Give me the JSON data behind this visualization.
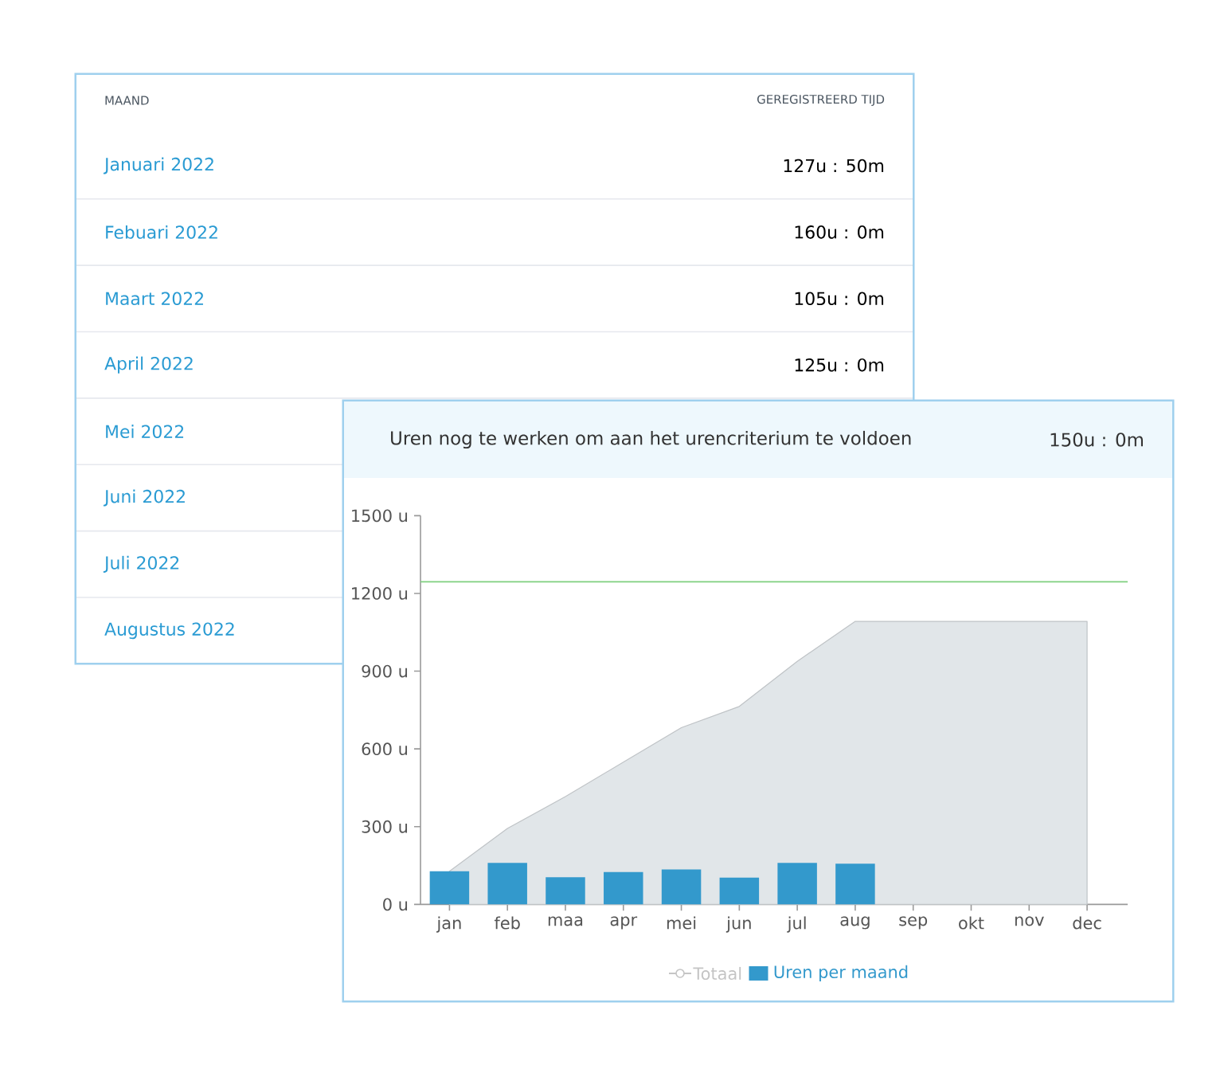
{
  "chart_data": [
    {
      "type": "other",
      "xlabel": "MAAND",
      "ylabel": "GEREGISTREERD TIJD",
      "categories": [
        "Januari 2022",
        "Febuari 2022",
        "Maart 2022",
        "April 2022",
        "Mei 2022",
        "Juni 2022",
        "Juli 2022",
        "Augustus 2022"
      ],
      "value_labels": [
        "127u : 50m",
        "160u : 0m",
        "105u : 0m",
        "125u : 0m",
        null,
        null,
        null,
        null
      ]
    },
    {
      "type": "bar",
      "title": "Uren nog te werken om aan het urencriterium te voldoen",
      "annotations": [
        "150u : 0m"
      ],
      "categories": [
        "jan",
        "feb",
        "maa",
        "apr",
        "mei",
        "jun",
        "jul",
        "aug",
        "sep",
        "okt",
        "nov",
        "dec"
      ],
      "series": [
        {
          "name": "Totaal",
          "type": "area",
          "color": "#e1e6e9",
          "values": [
            128,
            293,
            416,
            549,
            682,
            764,
            938,
            1092,
            1092,
            1092,
            1092,
            1092
          ]
        },
        {
          "name": "Uren per maand",
          "type": "bar",
          "color": "#3399cc",
          "values": [
            128,
            160,
            105,
            125,
            135,
            103,
            160,
            157,
            null,
            null,
            null,
            null
          ]
        }
      ],
      "ylim": [
        0,
        1500
      ],
      "yticks": [
        {
          "value": 0,
          "label": "0 u"
        },
        {
          "value": 300,
          "label": "300 u"
        },
        {
          "value": 600,
          "label": "600 u"
        },
        {
          "value": 900,
          "label": "900 u"
        },
        {
          "value": 1200,
          "label": "1200 u"
        },
        {
          "value": 1500,
          "label": "1500 u"
        }
      ],
      "ref_lines": [
        {
          "axis": "y",
          "value": 1245,
          "color": "#7fcf7f"
        }
      ],
      "legend": "bottom"
    }
  ]
}
